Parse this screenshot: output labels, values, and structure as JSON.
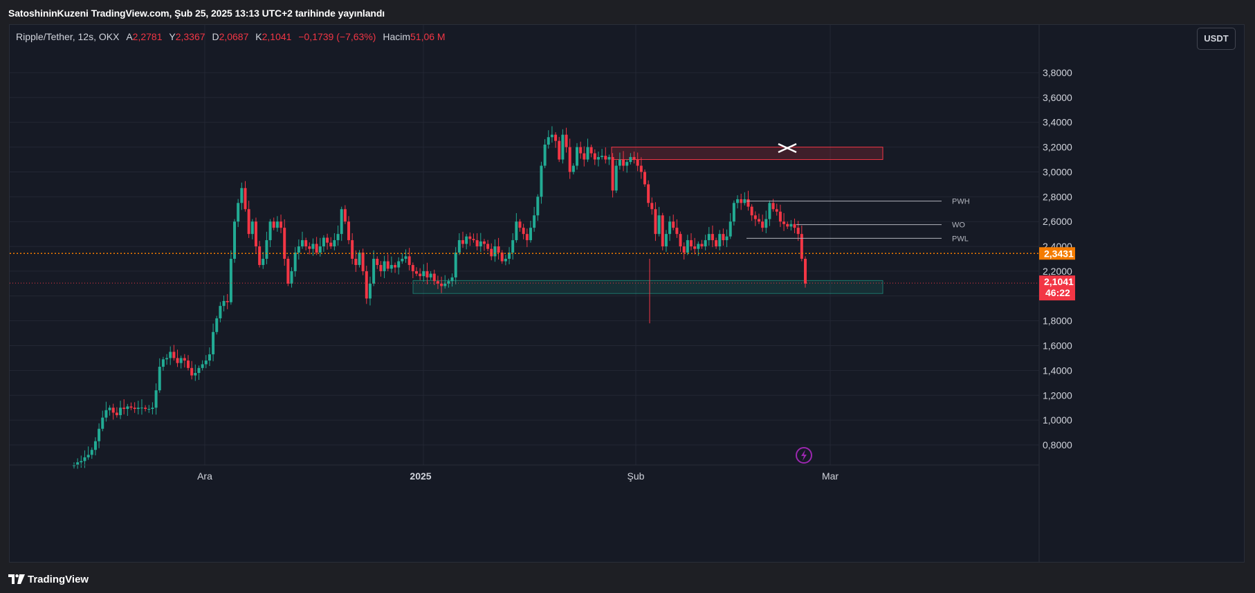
{
  "header": {
    "title": "SatoshininKuzeni TradingView.com, Şub 25, 2025 13:13 UTC+2 tarihinde yayınlandı"
  },
  "legend": {
    "symbol": "Ripple/Tether, 12s, OKX",
    "open_label": "A",
    "open": "2,2781",
    "high_label": "Y",
    "high": "2,3367",
    "low_label": "D",
    "low": "2,0687",
    "close_label": "K",
    "close": "2,1041",
    "change": "−0,1739 (−7,63%)",
    "volume_label": "Hacim",
    "volume": "51,06 M"
  },
  "currency_button": "USDT",
  "y_axis": {
    "ticks": [
      "3,8000",
      "3,6000",
      "3,4000",
      "3,2000",
      "3,0000",
      "2,8000",
      "2,6000",
      "2,4000",
      "2,2000",
      "1,8000",
      "1,6000",
      "1,4000",
      "1,2000",
      "1,0000",
      "0,8000"
    ],
    "tick_values": [
      3.8,
      3.6,
      3.4,
      3.2,
      3.0,
      2.8,
      2.6,
      2.4,
      2.2,
      1.8,
      1.6,
      1.4,
      1.2,
      1.0,
      0.8
    ]
  },
  "x_axis": {
    "labels": [
      "Ara",
      "2025",
      "Şub",
      "Mar"
    ]
  },
  "price_tags": {
    "high_line": {
      "value": "2,3431",
      "price": 2.3431,
      "color": "#f57c00"
    },
    "last": {
      "value": "2,1041",
      "countdown": "46:22",
      "price": 2.1041,
      "color": "#f23645"
    }
  },
  "levels": [
    {
      "label": "PWH",
      "price": 2.765
    },
    {
      "label": "WO",
      "price": 2.575
    },
    {
      "label": "PWL",
      "price": 2.465
    }
  ],
  "zones": {
    "supply": {
      "top": 3.2,
      "bottom": 3.1,
      "color": "#f23645"
    },
    "demand": {
      "top": 2.125,
      "bottom": 2.02,
      "color": "#22ab94"
    }
  },
  "colors": {
    "up": "#22ab94",
    "down": "#f23645",
    "background": "#161a25",
    "grid": "#232734"
  },
  "branding": {
    "logo_text": "TradingView"
  },
  "icons": {
    "alert": "lightning-icon",
    "logo": "tradingview-logo-icon"
  }
}
